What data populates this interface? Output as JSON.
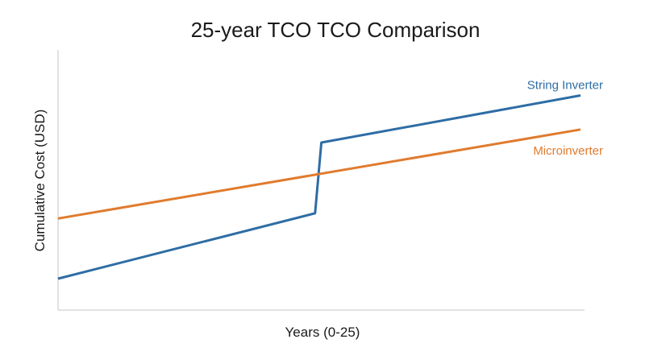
{
  "chart_data": {
    "type": "line",
    "title": "25-year TCO TCO Comparison",
    "xlabel": "Years (0-25)",
    "ylabel": "Cumulative Cost (USD)",
    "xlim": [
      0,
      25
    ],
    "ylim": [
      0,
      100
    ],
    "grid": false,
    "legend": "inline-right",
    "series": [
      {
        "name": "String Inverter",
        "color": "#2e6da4",
        "x": [
          0,
          12.3,
          12.6,
          25
        ],
        "y": [
          12,
          37,
          64,
          82
        ]
      },
      {
        "name": "Microinverter",
        "color": "#e07b2e",
        "x": [
          0,
          25
        ],
        "y": [
          35,
          69
        ]
      }
    ]
  }
}
